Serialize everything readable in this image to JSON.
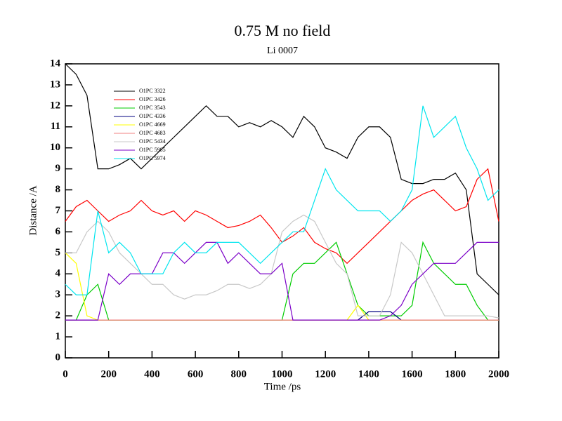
{
  "chart_data": {
    "type": "line",
    "title": "0.75 M no field",
    "subtitle": "Li 0007",
    "x_label": "Time /ps",
    "y_label": "Distance /A",
    "x": [
      0,
      50,
      100,
      150,
      200,
      250,
      300,
      350,
      400,
      450,
      500,
      550,
      600,
      650,
      700,
      750,
      800,
      850,
      900,
      950,
      1000,
      1050,
      1100,
      1150,
      1200,
      1250,
      1300,
      1350,
      1400,
      1450,
      1500,
      1550,
      1600,
      1650,
      1700,
      1750,
      1800,
      1850,
      1900,
      1950,
      2000
    ],
    "xlim": [
      0,
      2000
    ],
    "xticks": [
      0,
      200,
      400,
      600,
      800,
      1000,
      1200,
      1400,
      1600,
      1800,
      2000
    ],
    "ylim": [
      0,
      14
    ],
    "yticks": [
      0,
      1,
      2,
      3,
      4,
      5,
      6,
      7,
      8,
      9,
      10,
      11,
      12,
      13,
      14
    ],
    "series": [
      {
        "name": "O1PC 3322",
        "color": "#000000",
        "values": [
          14,
          13.5,
          12.5,
          9,
          9,
          9.2,
          9.5,
          9,
          9.5,
          10,
          10.5,
          11,
          11.5,
          12,
          11.5,
          11.5,
          11,
          11.2,
          11,
          11.3,
          11,
          10.5,
          11.5,
          11,
          10,
          9.8,
          9.5,
          10.5,
          11,
          11,
          10.5,
          8.5,
          8.3,
          8.3,
          8.5,
          8.5,
          8.8,
          8,
          4,
          3.5,
          3
        ]
      },
      {
        "name": "O1PC 3426",
        "color": "#ff0000",
        "values": [
          6.5,
          7.2,
          7.5,
          7,
          6.5,
          6.8,
          7,
          7.5,
          7,
          6.8,
          7,
          6.5,
          7,
          6.8,
          6.5,
          6.2,
          6.3,
          6.5,
          6.8,
          6.2,
          5.5,
          5.8,
          6.2,
          5.5,
          5.2,
          5,
          4.5,
          5,
          5.5,
          6,
          6.5,
          7,
          7.5,
          7.8,
          8,
          7.5,
          7,
          7.2,
          8.5,
          9,
          6.5
        ]
      },
      {
        "name": "O1PC 3543",
        "color": "#00cc00",
        "values": [
          1.8,
          1.8,
          3,
          3.5,
          1.8,
          1.8,
          1.8,
          1.8,
          1.8,
          1.8,
          1.8,
          1.8,
          1.8,
          1.8,
          1.8,
          1.8,
          1.8,
          1.8,
          1.8,
          1.8,
          1.8,
          4,
          4.5,
          4.5,
          5,
          5.5,
          4,
          2.5,
          2,
          2,
          2,
          2,
          2.5,
          5.5,
          4.5,
          4,
          3.5,
          3.5,
          2.5,
          1.8,
          1.8
        ]
      },
      {
        "name": "O1PC 4336",
        "color": "#000080",
        "values": [
          1.8,
          1.8,
          1.8,
          1.8,
          1.8,
          1.8,
          1.8,
          1.8,
          1.8,
          1.8,
          1.8,
          1.8,
          1.8,
          1.8,
          1.8,
          1.8,
          1.8,
          1.8,
          1.8,
          1.8,
          1.8,
          1.8,
          1.8,
          1.8,
          1.8,
          1.8,
          1.8,
          1.8,
          2.2,
          2.2,
          2.2,
          1.8,
          1.8,
          1.8,
          1.8,
          1.8,
          1.8,
          1.8,
          1.8,
          1.8,
          1.8
        ]
      },
      {
        "name": "O1PC 4669",
        "color": "#ffff00",
        "values": [
          5,
          4.5,
          2,
          1.8,
          1.8,
          1.8,
          1.8,
          1.8,
          1.8,
          1.8,
          1.8,
          1.8,
          1.8,
          1.8,
          1.8,
          1.8,
          1.8,
          1.8,
          1.8,
          1.8,
          1.8,
          1.8,
          1.8,
          1.8,
          1.8,
          1.8,
          1.8,
          2.5,
          1.8,
          1.8,
          1.8,
          1.8,
          1.8,
          1.8,
          1.8,
          1.8,
          1.8,
          1.8,
          1.8,
          1.8,
          1.8
        ]
      },
      {
        "name": "O1PC 4683",
        "color": "#f08080",
        "values": [
          1.8,
          1.8,
          1.8,
          1.8,
          1.8,
          1.8,
          1.8,
          1.8,
          1.8,
          1.8,
          1.8,
          1.8,
          1.8,
          1.8,
          1.8,
          1.8,
          1.8,
          1.8,
          1.8,
          1.8,
          1.8,
          1.8,
          1.8,
          1.8,
          1.8,
          1.8,
          1.8,
          1.8,
          1.8,
          1.8,
          1.8,
          1.8,
          1.8,
          1.8,
          1.8,
          1.8,
          1.8,
          1.8,
          1.8,
          1.8,
          1.8
        ]
      },
      {
        "name": "O1PC 5434",
        "color": "#c8c8c8",
        "values": [
          5,
          5,
          6,
          6.5,
          6,
          5,
          4.5,
          4,
          3.5,
          3.5,
          3,
          2.8,
          3,
          3,
          3.2,
          3.5,
          3.5,
          3.3,
          3.5,
          4,
          6,
          6.5,
          6.8,
          6.5,
          5.5,
          4.5,
          4,
          2,
          2,
          2,
          3,
          5.5,
          5,
          4,
          3,
          2,
          2,
          2,
          2,
          2,
          1.9
        ]
      },
      {
        "name": "O1PC 5985",
        "color": "#7b00c8",
        "values": [
          1.8,
          1.8,
          1.8,
          1.8,
          4,
          3.5,
          4,
          4,
          4,
          5,
          5,
          4.5,
          5,
          5.5,
          5.5,
          4.5,
          5,
          4.5,
          4,
          4,
          4.5,
          1.8,
          1.8,
          1.8,
          1.8,
          1.8,
          1.8,
          1.8,
          1.8,
          1.8,
          2,
          2.5,
          3.5,
          4,
          4.5,
          4.5,
          4.5,
          5,
          5.5,
          5.5,
          5.5
        ]
      },
      {
        "name": "O1PC 5974",
        "color": "#00e5ee",
        "values": [
          3.5,
          3,
          3,
          7,
          5,
          5.5,
          5,
          4,
          4,
          4,
          5,
          5.5,
          5,
          5,
          5.5,
          5.5,
          5.5,
          5,
          4.5,
          5,
          5.5,
          6,
          6,
          7.5,
          9,
          8,
          7.5,
          7,
          7,
          7,
          6.5,
          7,
          8,
          12,
          10.5,
          11,
          11.5,
          10,
          9,
          7.5,
          8
        ]
      }
    ]
  }
}
